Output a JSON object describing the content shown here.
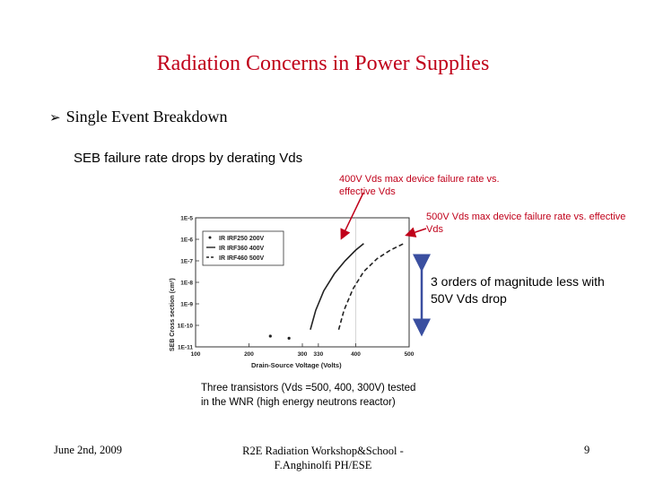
{
  "slide": {
    "title": "Radiation Concerns in Power Supplies",
    "bullet": "Single Event Breakdown",
    "subtitle": "SEB failure rate drops by derating Vds",
    "annotation_400v": "400V Vds max device failure rate vs. effective Vds",
    "annotation_500v": "500V Vds max device failure rate vs. effective Vds",
    "annotation_orders": "3 orders of magnitude less with 50V Vds drop",
    "caption": "Three transistors (Vds =500, 400, 300V) tested in the WNR (high energy neutrons reactor)",
    "footer_date": "June 2nd, 2009",
    "footer_venue": "R2E Radiation Workshop&School - F.Anghinolfi PH/ESE",
    "page_number": "9",
    "accent_color": "#c0001a"
  },
  "chart_data": {
    "type": "line",
    "title": "",
    "xlabel": "Drain-Source Voltage (Volts)",
    "ylabel": "SEB Cross section (cm²)",
    "xlim": [
      100,
      500
    ],
    "ylim_exponent": [
      -11,
      -5
    ],
    "x_ticks": [
      "100",
      "200",
      "300",
      "400",
      "500"
    ],
    "x_tick_values": [
      100,
      200,
      300,
      400,
      500
    ],
    "x_extra_tick": {
      "label": "330",
      "value": 330
    },
    "y_ticks": [
      "1E-5",
      "1E-6",
      "1E-7",
      "1E-8",
      "1E-9",
      "1E-10",
      "1E-11"
    ],
    "y_tick_exponents": [
      -5,
      -6,
      -7,
      -8,
      -9,
      -10,
      -11
    ],
    "legend_position": "top-left",
    "series": [
      {
        "name": "IR IRF250 200V",
        "style": "dots",
        "points": [
          [
            240,
            -10.5
          ],
          [
            275,
            -10.6
          ]
        ]
      },
      {
        "name": "IR IRF360 400V",
        "style": "solid",
        "points": [
          [
            315,
            -10.2
          ],
          [
            325,
            -9.3
          ],
          [
            340,
            -8.4
          ],
          [
            360,
            -7.6
          ],
          [
            380,
            -7.0
          ],
          [
            400,
            -6.5
          ],
          [
            415,
            -6.2
          ]
        ]
      },
      {
        "name": "IR IRF460 500V",
        "style": "dashed",
        "points": [
          [
            368,
            -10.2
          ],
          [
            378,
            -9.3
          ],
          [
            395,
            -8.3
          ],
          [
            415,
            -7.5
          ],
          [
            440,
            -6.9
          ],
          [
            465,
            -6.5
          ],
          [
            490,
            -6.2
          ]
        ]
      }
    ]
  }
}
